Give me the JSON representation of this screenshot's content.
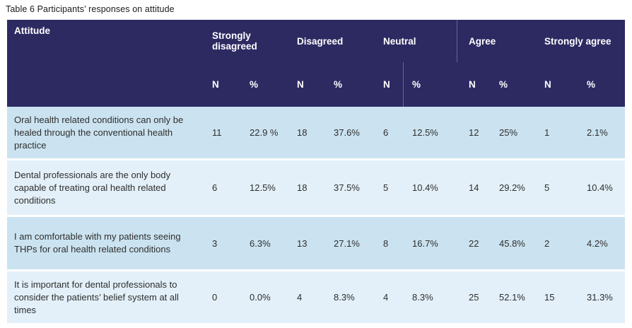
{
  "title": "Table 6 Participants’ responses on attitude",
  "colors": {
    "header_background": "#2d2a62",
    "row_dark": "#cbe3f0",
    "row_light": "#e3f0f9",
    "header_text": "#ffffff",
    "body_text": "#2e2e2e"
  },
  "table": {
    "corner_label": "Attitude",
    "groups": [
      {
        "label": "Strongly disagreed"
      },
      {
        "label": "Disagreed"
      },
      {
        "label": "Neutral"
      },
      {
        "label": "Agree"
      },
      {
        "label": "Strongly agree"
      }
    ],
    "subheaders": {
      "n": "N",
      "pct": "%"
    },
    "rows": [
      {
        "statement": "Oral health related conditions can only be healed through the conventional health practice",
        "values": [
          "11",
          "22.9 %",
          "18",
          "37.6%",
          "6",
          "12.5%",
          "12",
          "25%",
          "1",
          "2.1%"
        ]
      },
      {
        "statement": "Dental professionals are the only body capable of treating oral health related conditions",
        "values": [
          "6",
          "12.5%",
          "18",
          "37.5%",
          "5",
          "10.4%",
          "14",
          "29.2%",
          "5",
          "10.4%"
        ]
      },
      {
        "statement": "I am comfortable with my patients seeing THPs for oral health related conditions",
        "values": [
          "3",
          "6.3%",
          "13",
          "27.1%",
          "8",
          "16.7%",
          "22",
          "45.8%",
          "2",
          "4.2%"
        ]
      },
      {
        "statement": "It is important for dental professionals to consider the patients’ belief system at all times",
        "values": [
          "0",
          "0.0%",
          "4",
          "8.3%",
          "4",
          "8.3%",
          "25",
          "52.1%",
          "15",
          "31.3%"
        ]
      }
    ]
  }
}
